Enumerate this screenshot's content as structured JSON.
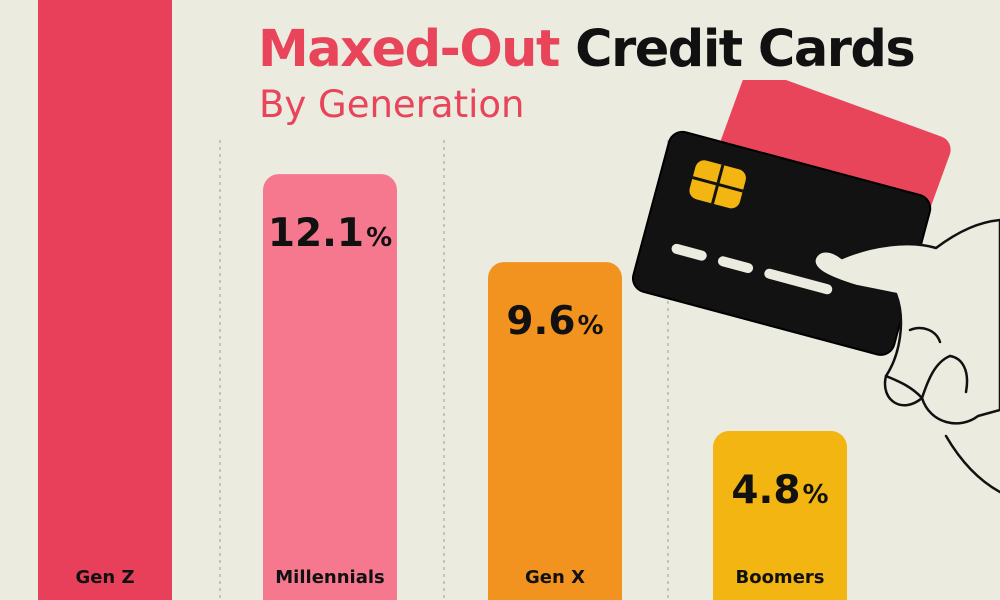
{
  "header": {
    "title_accent": "Maxed-Out",
    "title_rest": "Credit Cards",
    "subtitle": "By Generation"
  },
  "colors": {
    "background": "#ecebe0",
    "accent": "#e8445a",
    "text": "#111111",
    "divider": "#b9b7ab"
  },
  "chart_data": {
    "type": "bar",
    "title": "Maxed-Out Credit Cards",
    "subtitle": "By Generation",
    "categories": [
      "Gen Z",
      "Millennials",
      "Gen X",
      "Boomers"
    ],
    "values": [
      null,
      12.1,
      9.6,
      4.8
    ],
    "value_labels": [
      "",
      "12.1",
      "9.6",
      "4.8"
    ],
    "unit": "%",
    "bar_colors": [
      "#e8405a",
      "#f5788f",
      "#f2921f",
      "#f2b511"
    ],
    "grid": false,
    "legend": "none"
  },
  "illustration": {
    "icon": "credit-card-in-hand-icon"
  }
}
